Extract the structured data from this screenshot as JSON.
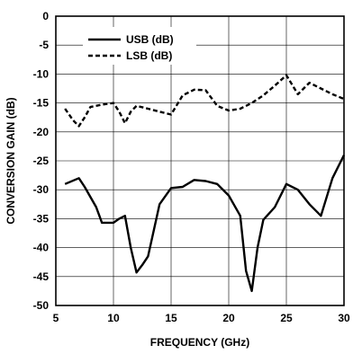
{
  "chart_data": {
    "type": "line",
    "title": "",
    "xlabel": "FREQUENCY (GHz)",
    "ylabel": "CONVERSION GAIN (dB)",
    "xlim": [
      5,
      30
    ],
    "ylim": [
      -50,
      0
    ],
    "xticks": [
      5,
      10,
      15,
      20,
      25,
      30
    ],
    "yticks": [
      0,
      -5,
      -10,
      -15,
      -20,
      -25,
      -30,
      -35,
      -40,
      -45,
      -50
    ],
    "grid": true,
    "legend_position": "top-left",
    "series": [
      {
        "name": "USB (dB)",
        "style": "solid",
        "color": "#000000",
        "x": [
          5.8,
          7,
          7.5,
          8.5,
          9,
          10,
          10.5,
          11,
          11.5,
          12,
          12.5,
          13,
          14,
          15,
          16,
          17,
          18,
          19,
          20,
          21,
          21.5,
          22,
          22.5,
          23,
          24,
          25,
          26,
          27,
          28,
          29,
          30
        ],
        "y": [
          -29,
          -28,
          -29.5,
          -33,
          -35.7,
          -35.7,
          -35,
          -34.5,
          -40,
          -44.3,
          -43,
          -41.5,
          -32.5,
          -29.7,
          -29.5,
          -28.3,
          -28.5,
          -29,
          -31,
          -34.5,
          -44,
          -47.5,
          -40,
          -35.2,
          -33,
          -29,
          -30,
          -32.5,
          -34.5,
          -28,
          -24
        ]
      },
      {
        "name": "LSB (dB)",
        "style": "dashed",
        "color": "#000000",
        "x": [
          5.8,
          6.5,
          7,
          7.5,
          8,
          9,
          10,
          10.5,
          11,
          11.5,
          12,
          13,
          14,
          15,
          16,
          17,
          18,
          19,
          20,
          21,
          22,
          23,
          24,
          25,
          26,
          27,
          28,
          29,
          30
        ],
        "y": [
          -16,
          -18,
          -19,
          -17.5,
          -15.7,
          -15.3,
          -15,
          -16.5,
          -18.5,
          -16.5,
          -15.5,
          -16,
          -16.5,
          -17,
          -13.7,
          -12.7,
          -12.8,
          -15.5,
          -16.3,
          -16,
          -15,
          -13.7,
          -12,
          -10.2,
          -13.5,
          -11.5,
          -12.5,
          -13.5,
          -14.3
        ]
      }
    ]
  }
}
